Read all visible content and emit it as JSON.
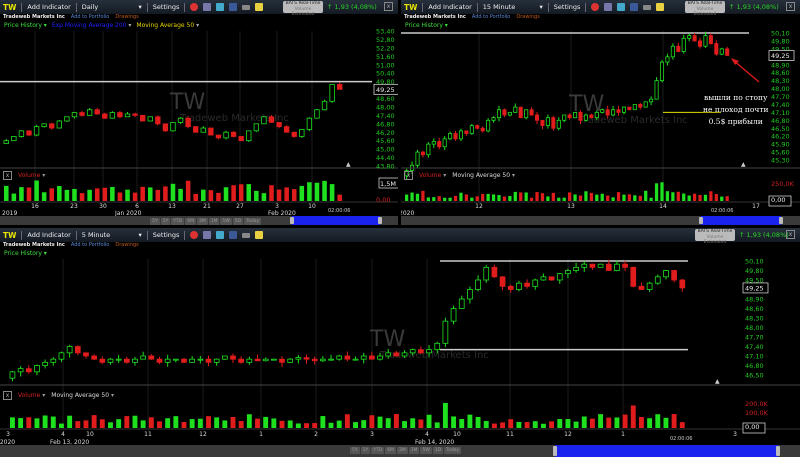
{
  "colors": {
    "up": "#1ee01e",
    "down": "#e01c1c",
    "axis_text": "#22cc22",
    "navigator": "#1a22ee",
    "level_line": "#cccccc",
    "ma_line": "#e8d800"
  },
  "panels": [
    {
      "symbol": "TW",
      "add_indicator": "Add Indicator",
      "interval": "Daily",
      "settings": "Settings",
      "company": "Tradeweb Markets Inc",
      "add_portfolio": "Add to Portfolio",
      "drawings": "Drawings",
      "price_history": "Price History",
      "overlays": [
        "Exp Moving Average 200",
        "Moving Average 50"
      ],
      "realtime": "BATS Real-Time",
      "realtime_sub": "Volume Estimated",
      "change": "1,93 (4,08%)",
      "watermark": "TW",
      "watermark_sub": "Tradeweb Markets Inc",
      "price_ticks": [
        "53,40",
        "52,80",
        "52,20",
        "51,60",
        "51,00",
        "50,40",
        "49,80",
        "48,60",
        "48,00",
        "47,40",
        "46,80",
        "46,20",
        "45,60",
        "45,00",
        "44,40",
        "43,80"
      ],
      "current_price": "49,25",
      "volume_label": "Volume",
      "volume_ticks": [
        "1,5M",
        "0,00"
      ],
      "x_ticks": [
        "16",
        "23",
        "30",
        "6",
        "13",
        "21",
        "27",
        "3",
        "10"
      ],
      "x_major": [
        "2019",
        "Jan 2020",
        "Feb 2020"
      ],
      "timestamp": "02:00:06",
      "range_buttons": [
        "5Y",
        "1Y",
        "YTD",
        "6M",
        "3M",
        "1M",
        "1W",
        "5D",
        "Today"
      ],
      "levels": [
        49.8
      ],
      "closes": [
        45.6,
        45.9,
        46.3,
        46.0,
        46.6,
        46.8,
        46.5,
        47.0,
        47.3,
        47.6,
        47.4,
        47.8,
        47.5,
        47.2,
        47.6,
        47.3,
        47.5,
        47.4,
        47.0,
        47.3,
        46.8,
        46.3,
        46.9,
        47.2,
        46.6,
        46.2,
        46.5,
        46.0,
        45.8,
        46.2,
        45.9,
        45.6,
        46.3,
        46.8,
        47.3,
        46.9,
        46.6,
        46.2,
        45.9,
        46.4,
        47.2,
        47.8,
        48.4,
        49.6,
        49.25
      ]
    },
    {
      "symbol": "TW",
      "add_indicator": "Add Indicator",
      "interval": "15 Minute",
      "settings": "Settings",
      "company": "Tradeweb Markets Inc",
      "add_portfolio": "Add to Portfolio",
      "drawings": "Drawings",
      "price_history": "Price History",
      "realtime": "BATS Real-Time",
      "realtime_sub": "Volume Estimated",
      "change": "1,93 (4,08%)",
      "watermark": "TW",
      "watermark_sub": "Tradeweb Markets Inc",
      "price_ticks": [
        "50,10",
        "49,80",
        "49,50",
        "48,90",
        "48,60",
        "48,30",
        "48,00",
        "47,70",
        "47,40",
        "47,10",
        "46,80",
        "46,50",
        "46,20",
        "45,90",
        "45,60",
        "45,30"
      ],
      "current_price": "49,25",
      "volume_label": "Volume",
      "volume_ma": "Moving Average 50",
      "volume_ticks": [
        "250,0K",
        "0,00"
      ],
      "x_ticks": [
        "12",
        "13",
        "14",
        "17"
      ],
      "x_major": [
        "2020"
      ],
      "timestamp": "02:00:06",
      "levels": [
        50.1
      ],
      "ma_level": 47.1,
      "annotation": [
        "вышли по стопу",
        "не плоход почти",
        "0.5$ прибыли"
      ],
      "closes": [
        44.9,
        45.1,
        45.6,
        45.5,
        45.9,
        46.0,
        45.8,
        46.1,
        46.3,
        46.1,
        46.4,
        46.3,
        46.6,
        46.5,
        46.4,
        46.8,
        46.9,
        47.2,
        47.0,
        47.1,
        47.3,
        46.9,
        47.2,
        47.0,
        46.8,
        46.6,
        46.9,
        46.5,
        46.8,
        47.0,
        46.9,
        47.1,
        46.8,
        47.0,
        46.9,
        47.1,
        47.2,
        47.0,
        47.2,
        47.1,
        47.3,
        47.2,
        47.4,
        47.3,
        47.5,
        47.6,
        48.3,
        49.0,
        49.2,
        49.6,
        49.4,
        49.9,
        50.0,
        49.8,
        49.6,
        50.0,
        49.7,
        49.3,
        49.5,
        49.25
      ]
    },
    {
      "symbol": "TW",
      "add_indicator": "Add Indicator",
      "interval": "5 Minute",
      "settings": "Settings",
      "company": "Tradeweb Markets Inc",
      "add_portfolio": "Add to Portfolio",
      "drawings": "Drawings",
      "price_history": "Price History",
      "realtime": "BATS Real-Time",
      "realtime_sub": "Volume Estimated",
      "change": "1,93 (4,08%)",
      "watermark": "TW",
      "watermark_sub": "Tradeweb Markets Inc",
      "price_ticks": [
        "50,10",
        "49,80",
        "49,50",
        "48,90",
        "48,60",
        "48,30",
        "48,00",
        "47,70",
        "47,40",
        "47,10",
        "46,80",
        "46,50"
      ],
      "current_price": "49,25",
      "volume_label": "Volume",
      "volume_ma": "Moving Average 50",
      "volume_ticks": [
        "200,0K",
        "100,0K",
        "0,00"
      ],
      "x_ticks": [
        "3",
        "4",
        "10",
        "11",
        "12",
        "1",
        "2",
        "3",
        "4",
        "10",
        "11",
        "12",
        "1",
        "3"
      ],
      "x_major": [
        ", 2020",
        "Feb 13, 2020",
        "Feb 14, 2020"
      ],
      "timestamp": "02:00:06",
      "range_buttons": [
        "5Y",
        "1Y",
        "YTD",
        "6M",
        "3M",
        "1M",
        "5W",
        "1D",
        "Today"
      ],
      "levels": [
        50.1,
        47.3
      ],
      "closes": [
        46.6,
        46.7,
        46.6,
        46.8,
        46.9,
        47.0,
        47.2,
        47.4,
        47.2,
        47.1,
        47.0,
        46.9,
        47.0,
        47.0,
        46.9,
        47.0,
        47.1,
        47.0,
        46.9,
        47.0,
        47.0,
        46.9,
        47.0,
        47.0,
        46.9,
        47.0,
        47.1,
        47.0,
        46.9,
        47.0,
        46.95,
        47.0,
        47.0,
        46.9,
        47.0,
        47.05,
        47.0,
        46.95,
        47.0,
        47.0,
        47.1,
        47.0,
        47.0,
        47.1,
        47.0,
        47.1,
        47.2,
        47.1,
        47.2,
        47.3,
        47.2,
        47.3,
        47.5,
        48.2,
        48.6,
        48.9,
        49.2,
        49.5,
        49.9,
        49.6,
        49.3,
        49.2,
        49.4,
        49.3,
        49.5,
        49.6,
        49.5,
        49.7,
        49.8,
        49.9,
        50.0,
        49.9,
        50.0,
        49.8,
        50.0,
        49.9,
        49.3,
        49.2,
        49.4,
        49.6,
        49.8,
        49.5,
        49.25
      ]
    }
  ]
}
